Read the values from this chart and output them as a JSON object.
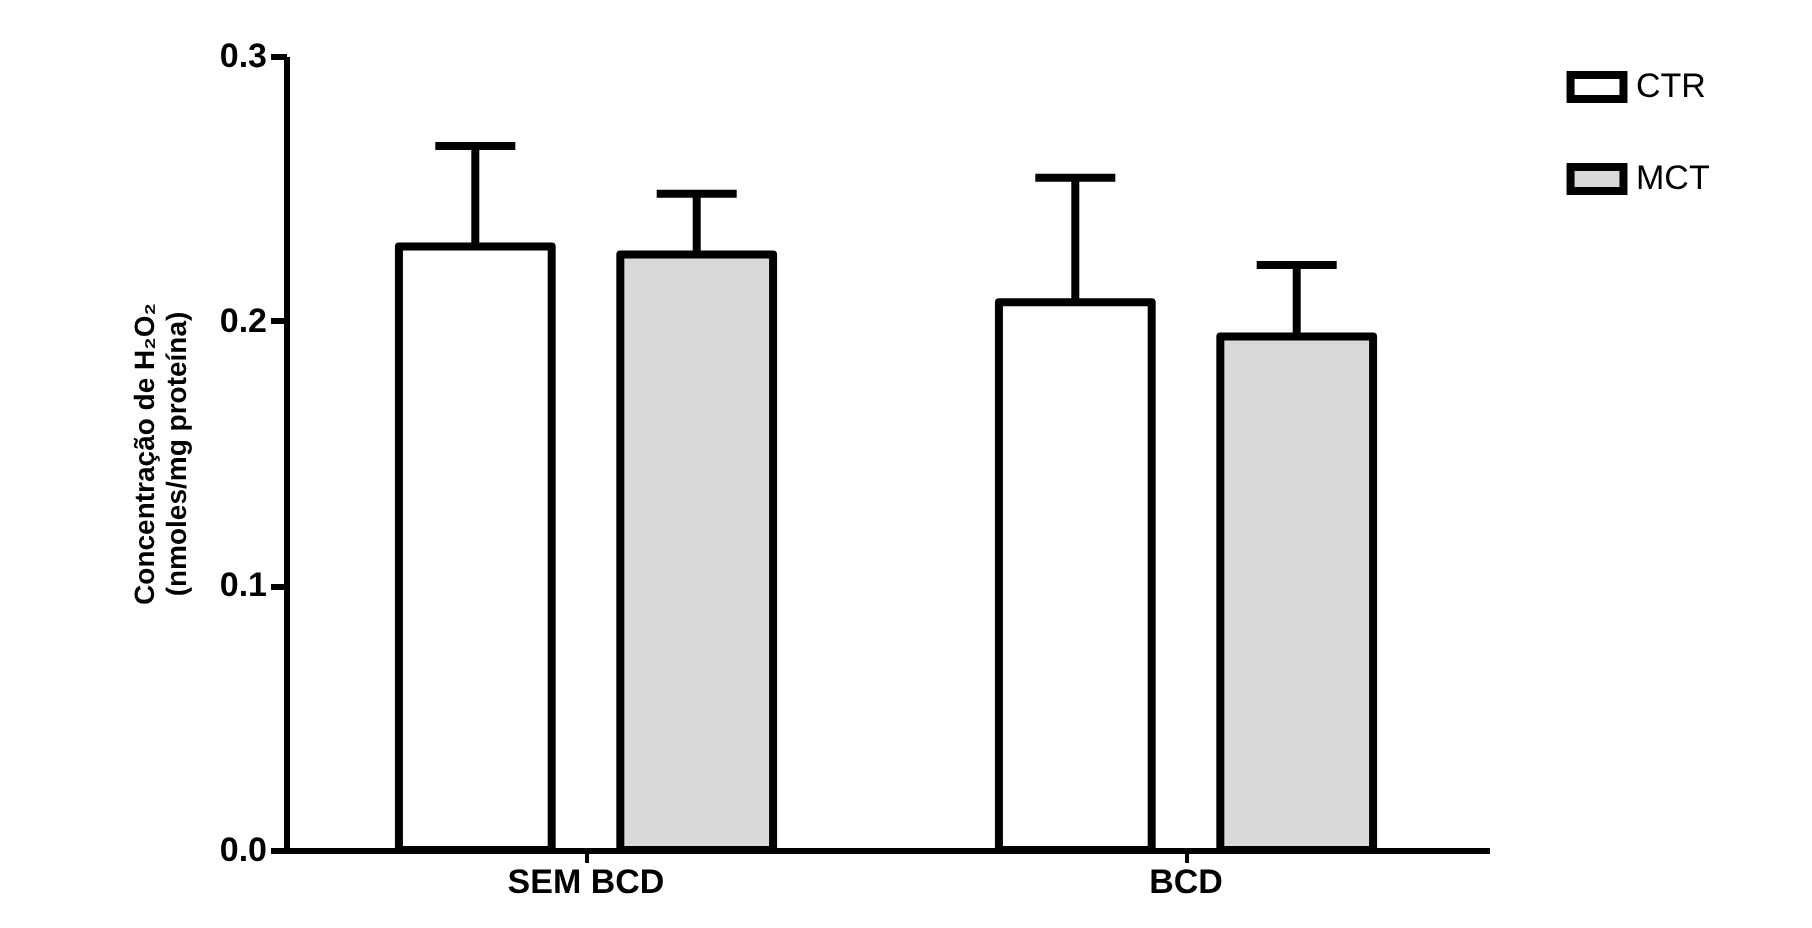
{
  "chart_data": {
    "type": "bar",
    "ylabel": "Concentração de  H₂O₂\n(nmoles/mg proteína)",
    "categories": [
      "SEM BCD",
      "BCD"
    ],
    "series": [
      {
        "name": "CTR",
        "color": "#ffffff",
        "values": [
          0.228,
          0.207
        ],
        "errors": [
          [
            0.228,
            0.266
          ],
          [
            0.207,
            0.254
          ]
        ]
      },
      {
        "name": "MCT",
        "color": "#d9d9d9",
        "values": [
          0.225,
          0.194
        ],
        "errors": [
          [
            0.225,
            0.248
          ],
          [
            0.194,
            0.221
          ]
        ]
      }
    ],
    "ylim": [
      0,
      0.3
    ],
    "yticks": [
      {
        "value": 0,
        "label": "0.0"
      },
      0.1,
      0.2,
      0.3
    ],
    "grid": false,
    "legend": "top right"
  }
}
